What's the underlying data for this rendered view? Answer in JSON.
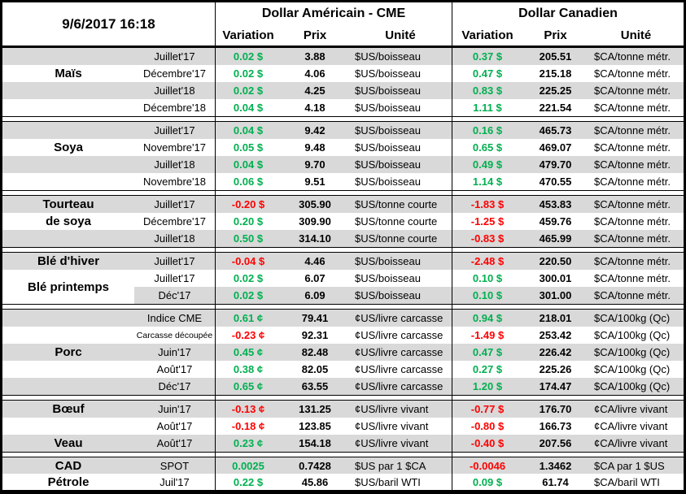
{
  "header": {
    "datetime": "9/6/2017 16:18",
    "usd_title": "Dollar Américain - CME",
    "cad_title": "Dollar Canadien",
    "columns": {
      "variation": "Variation",
      "prix": "Prix",
      "unite": "Unité"
    }
  },
  "colors": {
    "positive": "#00B050",
    "negative": "#FF0000",
    "row_shade": "#D9D9D9",
    "border": "#000000"
  },
  "sections": [
    {
      "id": "mais",
      "commodity": "Maïs",
      "rows": [
        {
          "shade": true,
          "name": "",
          "month": "Juillet'17",
          "usd": {
            "variation": "0.02 $",
            "trend": "up",
            "prix": "3.88",
            "unite": "$US/boisseau"
          },
          "cad": {
            "variation": "0.37 $",
            "trend": "up",
            "prix": "205.51",
            "unite": "$CA/tonne métr."
          }
        },
        {
          "shade": false,
          "name": "Maïs",
          "month": "Décembre'17",
          "usd": {
            "variation": "0.02 $",
            "trend": "up",
            "prix": "4.06",
            "unite": "$US/boisseau"
          },
          "cad": {
            "variation": "0.47 $",
            "trend": "up",
            "prix": "215.18",
            "unite": "$CA/tonne métr."
          }
        },
        {
          "shade": true,
          "name": "",
          "month": "Juillet'18",
          "usd": {
            "variation": "0.02 $",
            "trend": "up",
            "prix": "4.25",
            "unite": "$US/boisseau"
          },
          "cad": {
            "variation": "0.83 $",
            "trend": "up",
            "prix": "225.25",
            "unite": "$CA/tonne métr."
          }
        },
        {
          "shade": false,
          "name": "",
          "month": "Décembre'18",
          "usd": {
            "variation": "0.04 $",
            "trend": "up",
            "prix": "4.18",
            "unite": "$US/boisseau"
          },
          "cad": {
            "variation": "1.11 $",
            "trend": "up",
            "prix": "221.54",
            "unite": "$CA/tonne métr."
          }
        }
      ]
    },
    {
      "id": "soya",
      "commodity": "Soya",
      "rows": [
        {
          "shade": true,
          "name": "",
          "month": "Juillet'17",
          "usd": {
            "variation": "0.04 $",
            "trend": "up",
            "prix": "9.42",
            "unite": "$US/boisseau"
          },
          "cad": {
            "variation": "0.16 $",
            "trend": "up",
            "prix": "465.73",
            "unite": "$CA/tonne métr."
          }
        },
        {
          "shade": false,
          "name": "Soya",
          "month": "Novembre'17",
          "usd": {
            "variation": "0.05 $",
            "trend": "up",
            "prix": "9.48",
            "unite": "$US/boisseau"
          },
          "cad": {
            "variation": "0.65 $",
            "trend": "up",
            "prix": "469.07",
            "unite": "$CA/tonne métr."
          }
        },
        {
          "shade": true,
          "name": "",
          "month": "Juillet'18",
          "usd": {
            "variation": "0.04 $",
            "trend": "up",
            "prix": "9.70",
            "unite": "$US/boisseau"
          },
          "cad": {
            "variation": "0.49 $",
            "trend": "up",
            "prix": "479.70",
            "unite": "$CA/tonne métr."
          }
        },
        {
          "shade": false,
          "name": "",
          "month": "Novembre'18",
          "usd": {
            "variation": "0.06 $",
            "trend": "up",
            "prix": "9.51",
            "unite": "$US/boisseau"
          },
          "cad": {
            "variation": "1.14 $",
            "trend": "up",
            "prix": "470.55",
            "unite": "$CA/tonne métr."
          }
        }
      ]
    },
    {
      "id": "tourteau-de-soya",
      "commodity": "Tourteau de soya",
      "rows": [
        {
          "shade": true,
          "name": "Tourteau",
          "month": "Juillet'17",
          "usd": {
            "variation": "-0.20 $",
            "trend": "down",
            "prix": "305.90",
            "unite": "$US/tonne courte"
          },
          "cad": {
            "variation": "-1.83 $",
            "trend": "down",
            "prix": "453.83",
            "unite": "$CA/tonne métr."
          }
        },
        {
          "shade": false,
          "name": "de soya",
          "month": "Décembre'17",
          "usd": {
            "variation": "0.20 $",
            "trend": "up",
            "prix": "309.90",
            "unite": "$US/tonne courte"
          },
          "cad": {
            "variation": "-1.25 $",
            "trend": "down",
            "prix": "459.76",
            "unite": "$CA/tonne métr."
          }
        },
        {
          "shade": true,
          "name": "",
          "month": "Juillet'18",
          "usd": {
            "variation": "0.50 $",
            "trend": "up",
            "prix": "314.10",
            "unite": "$US/tonne courte"
          },
          "cad": {
            "variation": "-0.83 $",
            "trend": "down",
            "prix": "465.99",
            "unite": "$CA/tonne métr."
          }
        }
      ]
    },
    {
      "id": "ble",
      "commodity": "Blé",
      "rows": [
        {
          "shade": true,
          "name": "Blé d'hiver",
          "month": "Juillet'17",
          "usd": {
            "variation": "-0.04 $",
            "trend": "down",
            "prix": "4.46",
            "unite": "$US/boisseau"
          },
          "cad": {
            "variation": "-2.48 $",
            "trend": "down",
            "prix": "220.50",
            "unite": "$CA/tonne métr."
          }
        },
        {
          "shade": false,
          "name": "Blé printemps",
          "name_span": 2,
          "month": "Juillet'17",
          "usd": {
            "variation": "0.02 $",
            "trend": "up",
            "prix": "6.07",
            "unite": "$US/boisseau"
          },
          "cad": {
            "variation": "0.10 $",
            "trend": "up",
            "prix": "300.01",
            "unite": "$CA/tonne métr."
          }
        },
        {
          "shade": true,
          "name_skip": true,
          "month": "Déc'17",
          "usd": {
            "variation": "0.02 $",
            "trend": "up",
            "prix": "6.09",
            "unite": "$US/boisseau"
          },
          "cad": {
            "variation": "0.10 $",
            "trend": "up",
            "prix": "301.00",
            "unite": "$CA/tonne métr."
          }
        }
      ]
    },
    {
      "id": "porc",
      "commodity": "Porc",
      "rows": [
        {
          "shade": true,
          "name": "",
          "month": "Indice CME",
          "usd": {
            "variation": "0.61 ¢",
            "trend": "up",
            "prix": "79.41",
            "unite": "¢US/livre carcasse"
          },
          "cad": {
            "variation": "0.94 $",
            "trend": "up",
            "prix": "218.01",
            "unite": "$CA/100kg (Qc)"
          }
        },
        {
          "shade": false,
          "name": "",
          "month": "Carcasse découpée",
          "month_small": true,
          "usd": {
            "variation": "-0.23 ¢",
            "trend": "down",
            "prix": "92.31",
            "unite": "¢US/livre carcasse"
          },
          "cad": {
            "variation": "-1.49 $",
            "trend": "down",
            "prix": "253.42",
            "unite": "$CA/100kg (Qc)"
          }
        },
        {
          "shade": true,
          "name": "Porc",
          "month": "Juin'17",
          "usd": {
            "variation": "0.45 ¢",
            "trend": "up",
            "prix": "82.48",
            "unite": "¢US/livre carcasse"
          },
          "cad": {
            "variation": "0.47 $",
            "trend": "up",
            "prix": "226.42",
            "unite": "$CA/100kg (Qc)"
          }
        },
        {
          "shade": false,
          "name": "",
          "month": "Août'17",
          "usd": {
            "variation": "0.38 ¢",
            "trend": "up",
            "prix": "82.05",
            "unite": "¢US/livre carcasse"
          },
          "cad": {
            "variation": "0.27 $",
            "trend": "up",
            "prix": "225.26",
            "unite": "$CA/100kg (Qc)"
          }
        },
        {
          "shade": true,
          "name": "",
          "month": "Déc'17",
          "usd": {
            "variation": "0.65 ¢",
            "trend": "up",
            "prix": "63.55",
            "unite": "¢US/livre carcasse"
          },
          "cad": {
            "variation": "1.20 $",
            "trend": "up",
            "prix": "174.47",
            "unite": "$CA/100kg (Qc)"
          }
        }
      ]
    },
    {
      "id": "boeuf-veau",
      "commodity": "Bœuf / Veau",
      "rows": [
        {
          "shade": true,
          "name": "Bœuf",
          "month": "Juin'17",
          "usd": {
            "variation": "-0.13 ¢",
            "trend": "down",
            "prix": "131.25",
            "unite": "¢US/livre vivant"
          },
          "cad": {
            "variation": "-0.77 $",
            "trend": "down",
            "prix": "176.70",
            "unite": "¢CA/livre vivant"
          }
        },
        {
          "shade": false,
          "name": "",
          "month": "Août'17",
          "usd": {
            "variation": "-0.18 ¢",
            "trend": "down",
            "prix": "123.85",
            "unite": "¢US/livre vivant"
          },
          "cad": {
            "variation": "-0.80 $",
            "trend": "down",
            "prix": "166.73",
            "unite": "¢CA/livre vivant"
          }
        },
        {
          "shade": true,
          "name": "Veau",
          "month": "Août'17",
          "usd": {
            "variation": "0.23 ¢",
            "trend": "up",
            "prix": "154.18",
            "unite": "¢US/livre vivant"
          },
          "cad": {
            "variation": "-0.40 $",
            "trend": "down",
            "prix": "207.56",
            "unite": "¢CA/livre vivant"
          }
        }
      ]
    },
    {
      "id": "cad-petrole",
      "commodity": "CAD / Pétrole",
      "compact": true,
      "rows": [
        {
          "shade": true,
          "name": "CAD",
          "month": "SPOT",
          "usd": {
            "variation": "0.0025",
            "trend": "up",
            "prix": "0.7428",
            "unite": "$US par 1 $CA"
          },
          "cad": {
            "variation": "-0.0046",
            "trend": "down",
            "prix": "1.3462",
            "unite": "$CA par 1 $US"
          }
        },
        {
          "shade": false,
          "name": "Pétrole",
          "month": "Juil'17",
          "usd": {
            "variation": "0.22 $",
            "trend": "up",
            "prix": "45.86",
            "unite": "$US/baril WTI"
          },
          "cad": {
            "variation": "0.09 $",
            "trend": "up",
            "prix": "61.74",
            "unite": "$CA/baril WTI"
          }
        }
      ]
    }
  ]
}
